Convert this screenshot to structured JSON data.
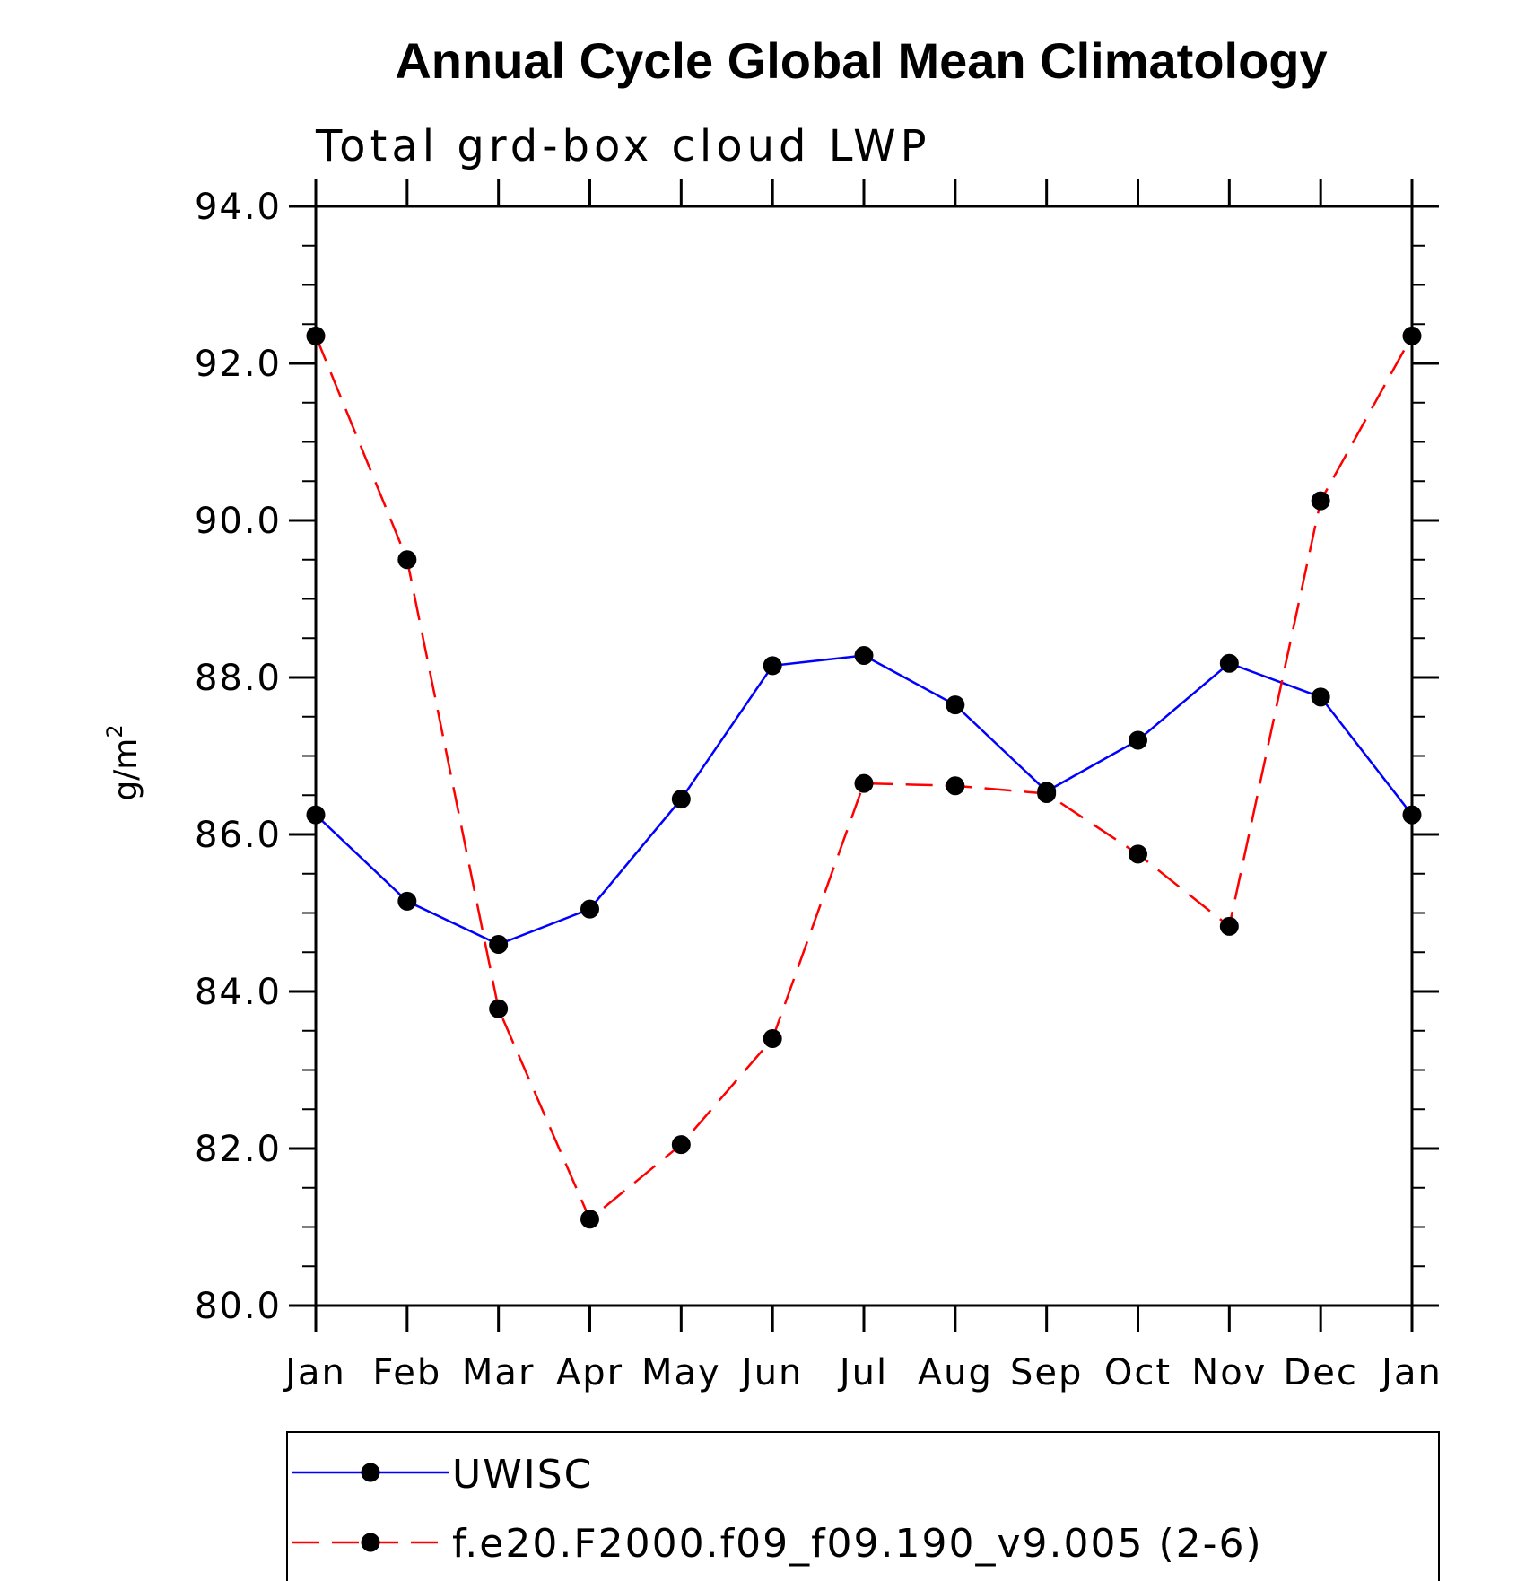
{
  "chart_data": {
    "type": "line",
    "title": "Annual Cycle Global Mean Climatology",
    "subtitle": "Total grd-box cloud LWP",
    "ylabel": "g/m",
    "ylabel_superscript": "2",
    "xlabel": "",
    "categories": [
      "Jan",
      "Feb",
      "Mar",
      "Apr",
      "May",
      "Jun",
      "Jul",
      "Aug",
      "Sep",
      "Oct",
      "Nov",
      "Dec",
      "Jan"
    ],
    "ylim": [
      80.0,
      94.0
    ],
    "y_major_ticks": [
      "80.0",
      "82.0",
      "84.0",
      "86.0",
      "88.0",
      "90.0",
      "92.0",
      "94.0"
    ],
    "y_minor_step": 0.5,
    "grid": false,
    "legend_position": "bottom",
    "series": [
      {
        "name": "UWISC",
        "color": "#0000ff",
        "line_style": "solid",
        "marker": "filled-circle",
        "values": [
          86.25,
          85.15,
          84.6,
          85.05,
          86.45,
          88.15,
          88.28,
          87.65,
          86.55,
          87.2,
          88.18,
          87.75,
          86.25
        ]
      },
      {
        "name": "f.e20.F2000.f09_f09.190_v9.005 (2-6)",
        "color": "#ff0000",
        "line_style": "dashed",
        "marker": "filled-circle",
        "values": [
          92.35,
          89.5,
          83.78,
          81.1,
          82.05,
          83.4,
          86.65,
          86.62,
          86.52,
          85.75,
          84.83,
          90.25,
          92.35
        ]
      }
    ]
  }
}
